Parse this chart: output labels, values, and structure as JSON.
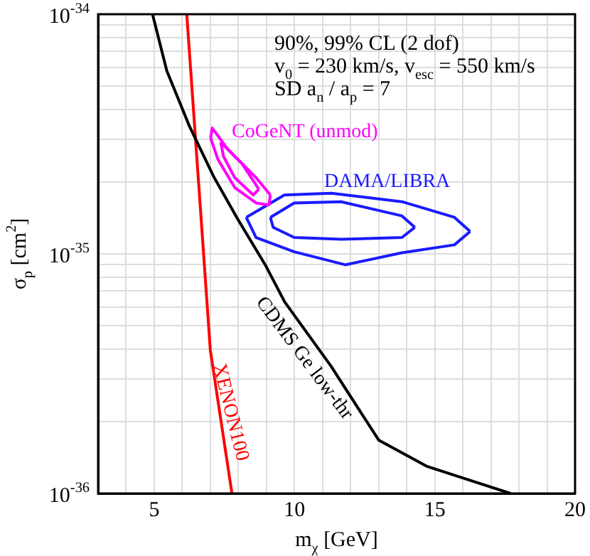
{
  "chart_data": {
    "type": "line",
    "xlabel": "m$_{χ}$ [GeV]",
    "ylabel": "σ$_{p}$ [cm$^{2}$]",
    "xlim": [
      3,
      20
    ],
    "xticks": [
      {
        "value": 3,
        "label": null
      },
      {
        "value": 4,
        "label": null
      },
      5,
      {
        "value": 6,
        "label": null
      },
      {
        "value": 7,
        "label": null
      },
      {
        "value": 8,
        "label": null
      },
      {
        "value": 9,
        "label": null
      },
      10,
      {
        "value": 11,
        "label": null
      },
      {
        "value": 12,
        "label": null
      },
      {
        "value": 13,
        "label": null
      },
      {
        "value": 14,
        "label": null
      },
      15,
      {
        "value": 16,
        "label": null
      },
      {
        "value": 17,
        "label": null
      },
      {
        "value": 18,
        "label": null
      },
      {
        "value": 19,
        "label": null
      },
      20
    ],
    "ylim": [
      1e-36,
      1e-34
    ],
    "log": "y",
    "yticks": [
      {
        "value": 1e-36,
        "label": "10$^{-36}$"
      },
      {
        "value": 2e-36,
        "label": null
      },
      {
        "value": 3e-36,
        "label": null
      },
      {
        "value": 4e-36,
        "label": null
      },
      {
        "value": 5e-36,
        "label": null
      },
      {
        "value": 6e-36,
        "label": null
      },
      {
        "value": 7e-36,
        "label": null
      },
      {
        "value": 8e-36,
        "label": null
      },
      {
        "value": 9e-36,
        "label": null
      },
      {
        "value": 1e-35,
        "label": "10$^{-35}$"
      },
      {
        "value": 2e-35,
        "label": null
      },
      {
        "value": 3e-35,
        "label": null
      },
      {
        "value": 4e-35,
        "label": null
      },
      {
        "value": 5e-35,
        "label": null
      },
      {
        "value": 6e-35,
        "label": null
      },
      {
        "value": 7e-35,
        "label": null
      },
      {
        "value": 8e-35,
        "label": null
      },
      {
        "value": 9e-35,
        "label": null
      },
      {
        "value": 1e-34,
        "label": "10$^{-34}$"
      }
    ],
    "grid": true,
    "legend": false,
    "annotations": [
      "90%, 99% CL (2 dof)",
      "v$_{0}$ = 230 km/s, v$_{esc}$ = 550 km/s",
      "SD a$_{n}$ / a$_{p}$ = 7"
    ],
    "series": [
      {
        "name": "CDMS Ge low-thr",
        "color": "#000000",
        "x": [
          4.94,
          5.45,
          6.26,
          7.12,
          7.97,
          8.98,
          9.65,
          11.3,
          13.0,
          14.7,
          16.4,
          17.7
        ],
        "values": [
          1e-34,
          5.8e-35,
          3.4e-35,
          2.1e-35,
          1.4e-35,
          8.9e-36,
          6.3e-36,
          3.4e-36,
          1.67e-36,
          1.3e-36,
          1.12e-36,
          1e-36
        ]
      },
      {
        "name": "XENON100",
        "color": "#ff0000",
        "x": [
          6.16,
          6.76,
          7.0,
          7.77
        ],
        "values": [
          1e-34,
          1e-35,
          3.96e-36,
          1e-36
        ]
      },
      {
        "name": "CoGeNT (unmod)",
        "color": "#ff00ff",
        "x": [
          7.01,
          7.07,
          7.62,
          8.63,
          9.14
        ],
        "values": [
          3.05e-35,
          3.35e-35,
          2.73e-35,
          2.08e-35,
          1.76e-35
        ]
      },
      {
        "color": "#ff00ff",
        "x": [
          7.01,
          7.27,
          7.87,
          8.63,
          9.09,
          9.14
        ],
        "values": [
          3.05e-35,
          2.48e-35,
          1.89e-35,
          1.63e-35,
          1.6e-35,
          1.76e-35
        ]
      },
      {
        "color": "#ff00ff",
        "x": [
          7.37,
          8.13,
          8.73
        ],
        "values": [
          2.92e-35,
          2.38e-35,
          1.86e-35
        ]
      },
      {
        "color": "#ff00ff",
        "x": [
          7.37,
          7.47,
          7.87,
          8.53,
          8.73
        ],
        "values": [
          2.92e-35,
          2.55e-35,
          2.08e-35,
          1.76e-35,
          1.86e-35
        ]
      },
      {
        "name": "DAMA/LIBRA",
        "color": "#1a1aff",
        "x": [
          8.28,
          9.64,
          11.31,
          13.83,
          15.7,
          16.26
        ],
        "values": [
          1.42e-35,
          1.76e-35,
          1.79e-35,
          1.65e-35,
          1.42e-35,
          1.24e-35
        ]
      },
      {
        "color": "#1a1aff",
        "x": [
          8.28,
          8.63,
          9.99,
          11.81,
          13.83,
          15.7,
          16.26
        ],
        "values": [
          1.42e-35,
          1.17e-35,
          1.02e-35,
          9e-36,
          1.01e-35,
          1.09e-35,
          1.24e-35
        ]
      },
      {
        "color": "#1a1aff",
        "x": [
          9.14,
          9.99,
          11.66,
          13.83,
          14.29
        ],
        "values": [
          1.42e-35,
          1.63e-35,
          1.65e-35,
          1.44e-35,
          1.29e-35
        ]
      },
      {
        "color": "#1a1aff",
        "x": [
          9.14,
          9.24,
          9.99,
          11.66,
          13.83,
          14.29
        ],
        "values": [
          1.42e-35,
          1.29e-35,
          1.17e-35,
          1.15e-35,
          1.17e-35,
          1.29e-35
        ]
      }
    ]
  }
}
